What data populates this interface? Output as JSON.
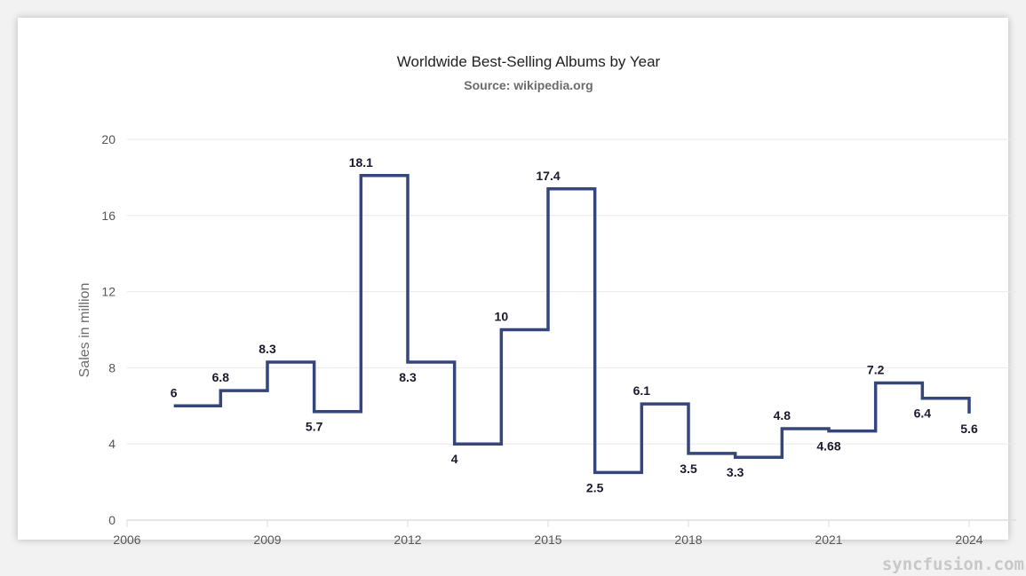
{
  "chart_data": {
    "type": "line",
    "subtype": "step",
    "title": "Worldwide Best-Selling Albums by Year",
    "subtitle": "Source: wikipedia.org",
    "xlabel": "",
    "ylabel": "Sales in million",
    "xlim": [
      2006,
      2024
    ],
    "ylim": [
      0,
      20
    ],
    "x_ticks": [
      "2006",
      "2009",
      "2012",
      "2015",
      "2018",
      "2021",
      "2024"
    ],
    "y_ticks": [
      "0",
      "4",
      "8",
      "12",
      "16",
      "20"
    ],
    "grid": "horizontal",
    "line_color": "#34467c",
    "x": [
      2007,
      2008,
      2009,
      2010,
      2011,
      2012,
      2013,
      2014,
      2015,
      2016,
      2017,
      2018,
      2019,
      2020,
      2021,
      2022,
      2023,
      2024
    ],
    "values": [
      6,
      6.8,
      8.3,
      5.7,
      18.1,
      8.3,
      4,
      10,
      17.4,
      2.5,
      6.1,
      3.5,
      3.3,
      4.8,
      4.68,
      7.2,
      6.4,
      5.6
    ],
    "data_labels": true
  },
  "watermark": "syncfusion.com"
}
